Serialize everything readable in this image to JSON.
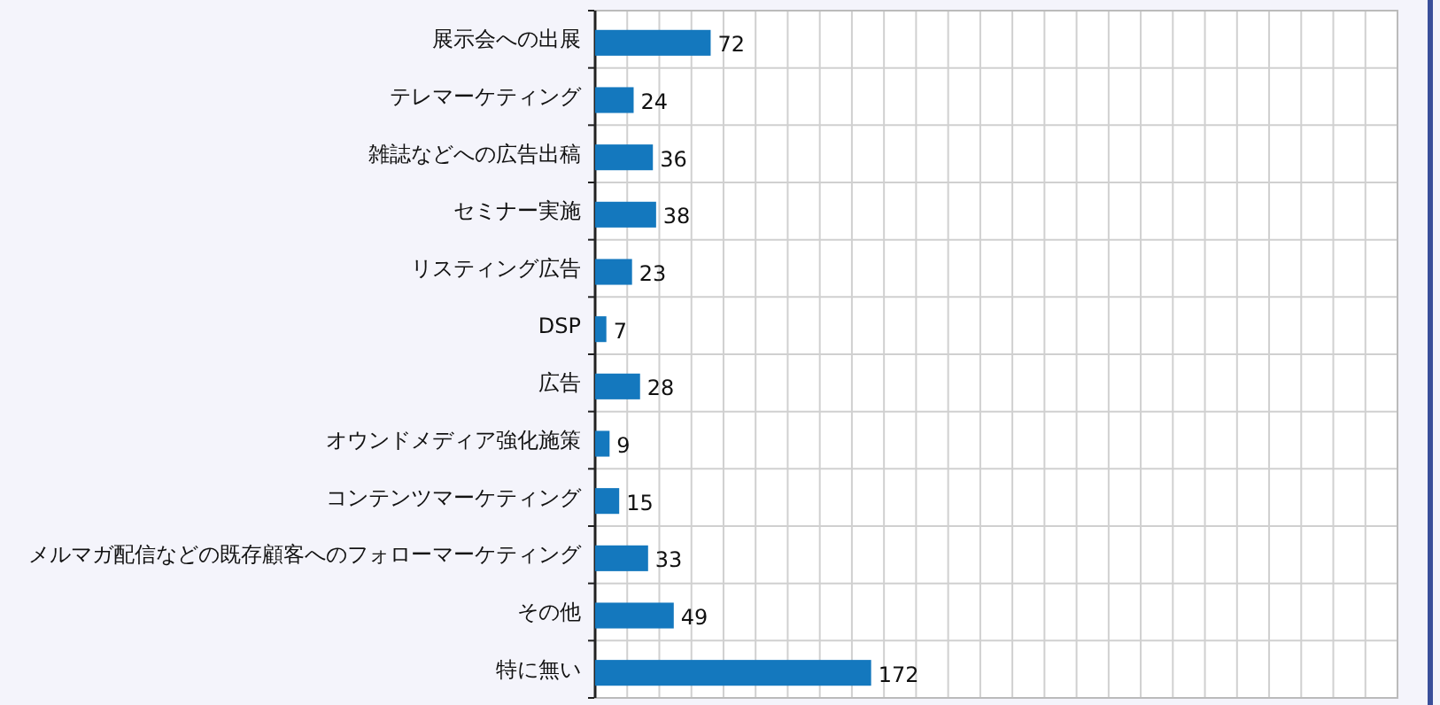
{
  "chart_data": {
    "type": "bar",
    "orientation": "horizontal",
    "categories": [
      "展示会への出展",
      "テレマーケティング",
      "雑誌などへの広告出稿",
      "セミナー実施",
      "リスティング広告",
      "DSP",
      "広告",
      "オウンドメディア強化施策",
      "コンテンツマーケティング",
      "メルマガ配信などの既存顧客へのフォローマーケティング",
      "その他",
      "特に無い"
    ],
    "values": [
      72,
      24,
      36,
      38,
      23,
      7,
      28,
      9,
      15,
      33,
      49,
      172
    ],
    "color": "#1478be",
    "data_labels": true,
    "grid": "x",
    "xlim": [
      0,
      500
    ],
    "xticks": [
      {
        "value": 0,
        "label": null
      },
      {
        "value": 20,
        "label": null
      },
      {
        "value": 40,
        "label": null
      },
      {
        "value": 60,
        "label": null
      },
      {
        "value": 80,
        "label": null
      },
      {
        "value": 100,
        "label": null
      },
      {
        "value": 120,
        "label": null
      },
      {
        "value": 140,
        "label": null
      },
      {
        "value": 160,
        "label": null
      },
      {
        "value": 180,
        "label": null
      },
      {
        "value": 200,
        "label": null
      },
      {
        "value": 220,
        "label": null
      },
      {
        "value": 240,
        "label": null
      },
      {
        "value": 260,
        "label": null
      },
      {
        "value": 280,
        "label": null
      },
      {
        "value": 300,
        "label": null
      },
      {
        "value": 320,
        "label": null
      },
      {
        "value": 340,
        "label": null
      },
      {
        "value": 360,
        "label": null
      },
      {
        "value": 380,
        "label": null
      },
      {
        "value": 400,
        "label": null
      },
      {
        "value": 420,
        "label": null
      },
      {
        "value": 440,
        "label": null
      },
      {
        "value": 460,
        "label": null
      },
      {
        "value": 480,
        "label": null
      },
      {
        "value": 500,
        "label": null
      }
    ]
  }
}
